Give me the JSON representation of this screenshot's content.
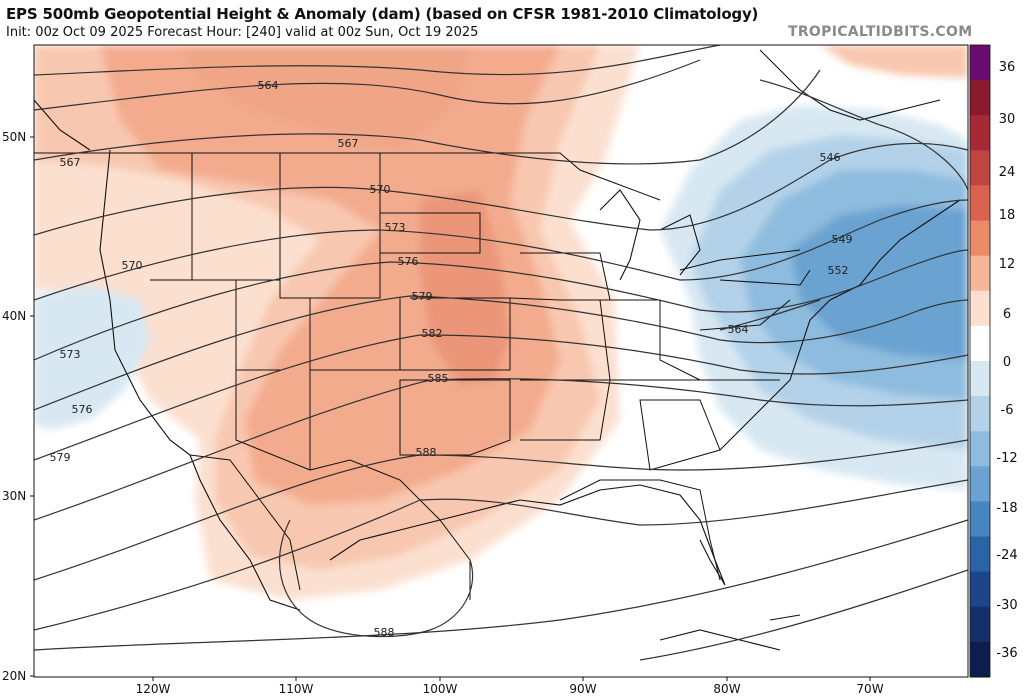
{
  "header": {
    "title": "EPS 500mb Geopotential Height & Anomaly (dam) (based on CFSR 1981-2010 Climatology)",
    "subtitle": "Init: 00z Oct 09 2025   Forecast Hour: [240]   valid at 00z Sun, Oct 19 2025",
    "brand": "TROPICALTIDBITS.COM"
  },
  "map": {
    "lat_labels": [
      "50N",
      "40N",
      "30N",
      "20N"
    ],
    "lon_labels": [
      "120W",
      "110W",
      "100W",
      "90W",
      "80W",
      "70W"
    ],
    "contour_labels": [
      "564",
      "567",
      "567",
      "570",
      "570",
      "573",
      "573",
      "576",
      "576",
      "579",
      "579",
      "582",
      "585",
      "588",
      "588",
      "546",
      "549",
      "552",
      "564"
    ]
  },
  "colorbar": {
    "ticks": [
      "36",
      "30",
      "24",
      "18",
      "12",
      "6",
      "0",
      "-6",
      "-12",
      "-18",
      "-24",
      "-30",
      "-36"
    ],
    "colors": [
      "#6b0d6e",
      "#8a1a2e",
      "#a52a36",
      "#c0443f",
      "#d9634e",
      "#e98b68",
      "#f4b79a",
      "#fbe0d0",
      "#ffffff",
      "#d8e8f3",
      "#b3d2e9",
      "#8ebcde",
      "#6aa3d1",
      "#4785c0",
      "#2c63a6",
      "#1d4589",
      "#13306b",
      "#0d1d4d"
    ]
  }
}
